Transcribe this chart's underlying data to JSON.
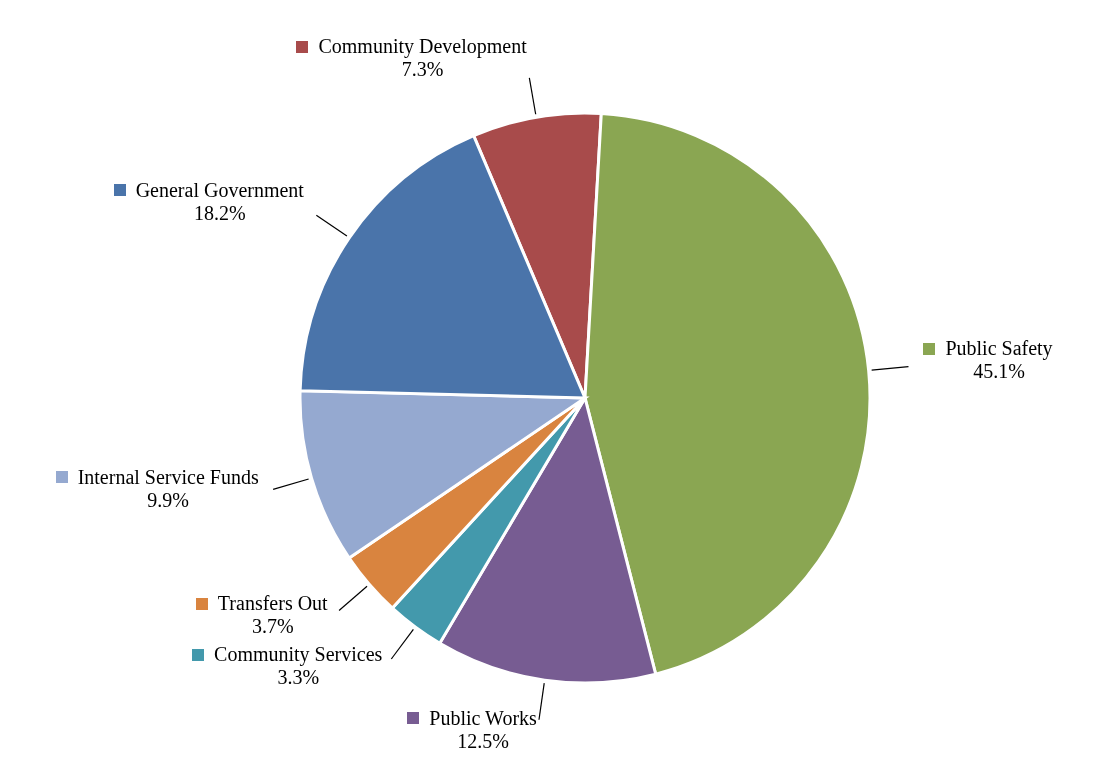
{
  "chart_data": {
    "type": "pie",
    "categories": [
      "Community Development",
      "Public Safety",
      "Public Works",
      "Community Services",
      "Transfers Out",
      "Internal Service Funds",
      "General Government"
    ],
    "values": [
      7.3,
      45.1,
      12.5,
      3.3,
      3.7,
      9.9,
      18.2
    ],
    "value_labels": [
      "7.3%",
      "45.1%",
      "12.5%",
      "3.3%",
      "3.7%",
      "9.9%",
      "18.2%"
    ],
    "colors": [
      "#a84b4b",
      "#8aa652",
      "#775c92",
      "#4399ac",
      "#d9843f",
      "#95a9d0",
      "#4a74aa"
    ],
    "legend": "top left"
  }
}
